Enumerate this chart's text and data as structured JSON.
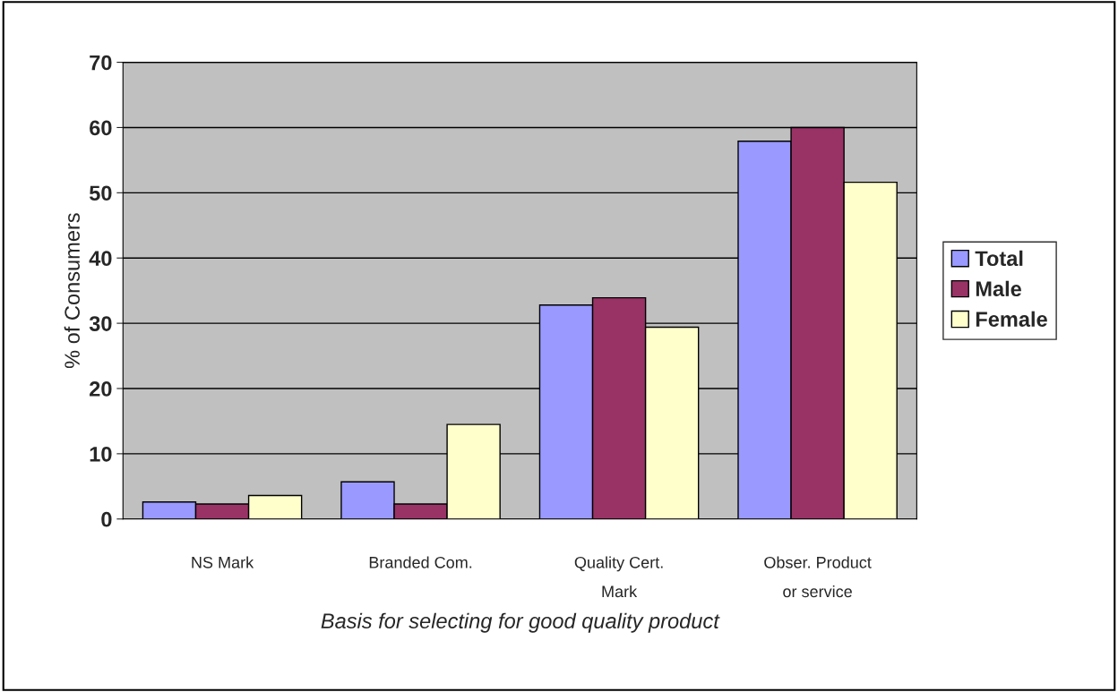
{
  "chart_data": {
    "type": "bar",
    "xlabel": "Basis for selecting for good quality product",
    "ylabel": "% of Consumers",
    "categories": [
      "NS Mark",
      "Branded Com.",
      "Quality Cert.\nMark",
      "Obser. Product\nor service"
    ],
    "series": [
      {
        "name": "Total",
        "color": "#9999ff",
        "values": [
          2.6,
          5.7,
          32.8,
          57.9
        ]
      },
      {
        "name": "Male",
        "color": "#993366",
        "values": [
          2.3,
          2.3,
          33.9,
          60.0
        ]
      },
      {
        "name": "Female",
        "color": "#ffffcc",
        "values": [
          3.6,
          14.5,
          29.4,
          51.6
        ]
      }
    ],
    "ylim": [
      0,
      70
    ],
    "yticks": [
      0,
      10,
      20,
      30,
      40,
      50,
      60,
      70
    ],
    "grid": "y",
    "legend": "right"
  }
}
